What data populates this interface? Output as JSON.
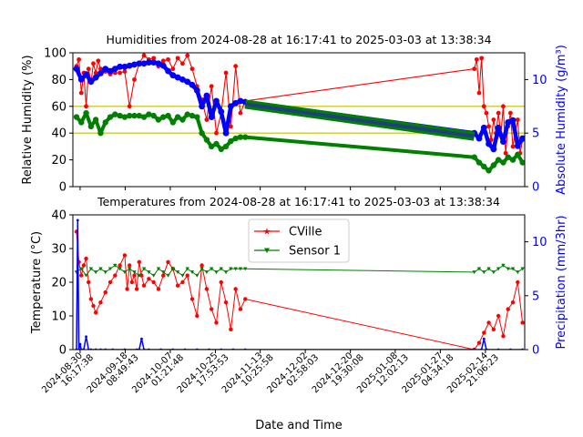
{
  "chart_data": [
    {
      "type": "line",
      "title": "Humidities from 2024-08-28 at 16:17:41 to 2025-03-03 at 13:38:34",
      "xlabel": "",
      "ylabel": "Relative Humidity (%)",
      "ylabel_right": "Absolute Humidity (g/m³)",
      "ylim": [
        0,
        100
      ],
      "ylim_right": [
        0,
        12.5
      ],
      "yticks": [
        0,
        20,
        40,
        60,
        80,
        100
      ],
      "yticks_right": [
        0,
        5,
        10
      ],
      "reference_lines": [
        40,
        60
      ],
      "x_range_days": [
        -1.5,
        185.9
      ],
      "series": [
        {
          "color": "#ff0000",
          "x": [
            0,
            1,
            2,
            3,
            4,
            5,
            6,
            7,
            8,
            9,
            10,
            12,
            14,
            16,
            18,
            20,
            22,
            24,
            26,
            28,
            30,
            32,
            34,
            36,
            38,
            40,
            42,
            44,
            46,
            48,
            50,
            52,
            54,
            56,
            58,
            60,
            62,
            64,
            66,
            68,
            70,
            165,
            166,
            167,
            168,
            169,
            170,
            171,
            172,
            173,
            174,
            175,
            176,
            177,
            178,
            179,
            180,
            181,
            182,
            183,
            184,
            185
          ],
          "y": [
            90,
            95,
            70,
            85,
            60,
            88,
            78,
            92,
            85,
            94,
            88,
            86,
            84,
            85,
            85,
            86,
            60,
            80,
            92,
            98,
            95,
            96,
            90,
            94,
            95,
            88,
            96,
            92,
            98,
            88,
            75,
            65,
            50,
            75,
            40,
            55,
            85,
            45,
            90,
            55,
            64,
            88,
            95,
            70,
            96,
            60,
            55,
            45,
            35,
            50,
            40,
            55,
            38,
            60,
            25,
            45,
            55,
            30,
            40,
            50,
            25,
            35
          ]
        },
        {
          "color": "#008000",
          "x": [
            0,
            2,
            4,
            6,
            8,
            10,
            12,
            14,
            16,
            18,
            20,
            22,
            24,
            26,
            28,
            30,
            32,
            34,
            36,
            38,
            40,
            42,
            44,
            46,
            48,
            50,
            52,
            54,
            56,
            58,
            60,
            62,
            64,
            66,
            68,
            70,
            165,
            167,
            169,
            171,
            173,
            175,
            177,
            179,
            181,
            183,
            185
          ],
          "y": [
            52,
            48,
            55,
            45,
            50,
            40,
            48,
            52,
            54,
            53,
            52,
            53,
            53,
            53,
            52,
            54,
            53,
            50,
            52,
            53,
            48,
            52,
            50,
            54,
            53,
            52,
            40,
            35,
            30,
            32,
            28,
            30,
            34,
            36,
            37,
            37,
            22,
            18,
            15,
            12,
            16,
            20,
            18,
            22,
            20,
            24,
            18
          ]
        }
      ],
      "series_right": [
        {
          "color": "#0000ff",
          "x": [
            0,
            2,
            4,
            6,
            8,
            10,
            12,
            14,
            16,
            18,
            20,
            22,
            24,
            26,
            28,
            30,
            32,
            34,
            36,
            38,
            40,
            42,
            44,
            46,
            48,
            50,
            52,
            54,
            56,
            58,
            60,
            62,
            64,
            66,
            68,
            70,
            165,
            167,
            169,
            171,
            173,
            175,
            177,
            179,
            181,
            183,
            185
          ],
          "y": [
            11,
            10,
            10.5,
            9.8,
            10.2,
            10.6,
            11,
            10.8,
            11,
            11.2,
            11.2,
            11.3,
            11.4,
            11.5,
            11.5,
            11.6,
            11.6,
            11.5,
            11.3,
            10.8,
            10.4,
            10.2,
            10,
            9.8,
            9.5,
            9,
            7.5,
            8.5,
            6.5,
            8,
            7,
            5,
            7.5,
            7.8,
            8,
            7.9,
            5,
            4.5,
            5.5,
            4,
            3.5,
            5.5,
            4.2,
            6,
            6.2,
            3.8,
            4.5
          ]
        },
        {
          "color": "#008000",
          "x": [
            70,
            165
          ],
          "y": [
            7.7,
            4.7
          ]
        }
      ]
    },
    {
      "type": "line",
      "title": "Temperatures from 2024-08-28 at 16:17:41 to 2025-03-03 at 13:38:34",
      "xlabel": "Date and Time",
      "ylabel": "Temperature (°C)",
      "ylabel_right": "Precipitation (mm/3hr)",
      "ylim": [
        0,
        40
      ],
      "ylim_right": [
        0,
        12.5
      ],
      "yticks": [
        0,
        10,
        20,
        30,
        40
      ],
      "yticks_right": [
        0,
        5,
        10
      ],
      "x_range_days": [
        -1.5,
        185.9
      ],
      "xtick_days": [
        1.5,
        20.2,
        38.9,
        57.6,
        76.2,
        94.9,
        113.6,
        132.2,
        150.9,
        169.6
      ],
      "xtick_labels": [
        [
          "2024-08-30",
          "16:17:38"
        ],
        [
          "2024-09-18",
          "08:49:43"
        ],
        [
          "2024-10-07",
          "01:21:48"
        ],
        [
          "2024-10-25",
          "17:53:53"
        ],
        [
          "2024-11-13",
          "10:25:58"
        ],
        [
          "2024-12-02",
          "02:58:03"
        ],
        [
          "2024-12-20",
          "19:30:08"
        ],
        [
          "2025-01-08",
          "12:02:13"
        ],
        [
          "2025-01-27",
          "04:34:18"
        ],
        [
          "2025-02-14",
          "21:06:23"
        ]
      ],
      "legend": {
        "position": "top-center",
        "entries": [
          "CVille",
          "Sensor 1"
        ]
      },
      "series": [
        {
          "name": "CVille",
          "color": "#ff0000",
          "marker": "star",
          "x": [
            0,
            1,
            2,
            3,
            4,
            5,
            6,
            7,
            8,
            10,
            12,
            14,
            16,
            18,
            20,
            21,
            22,
            23,
            24,
            25,
            26,
            27,
            28,
            30,
            32,
            34,
            36,
            38,
            40,
            42,
            44,
            46,
            48,
            50,
            52,
            54,
            56,
            58,
            60,
            62,
            64,
            66,
            68,
            70,
            165,
            167,
            169,
            171,
            173,
            175,
            177,
            179,
            181,
            183,
            185
          ],
          "y": [
            35,
            26,
            22,
            25,
            27,
            20,
            15,
            13,
            11,
            14,
            17,
            20,
            22,
            25,
            28,
            18,
            25,
            20,
            22,
            18,
            26,
            22,
            19,
            21,
            20,
            18,
            22,
            26,
            24,
            19,
            20,
            22,
            15,
            10,
            25,
            18,
            12,
            8,
            20,
            14,
            6,
            18,
            12,
            15,
            0,
            2,
            5,
            8,
            6,
            10,
            4,
            12,
            14,
            20,
            8
          ]
        },
        {
          "name": "Sensor 1",
          "color": "#008000",
          "marker": "triangle",
          "x": [
            0,
            2,
            4,
            6,
            8,
            10,
            12,
            14,
            16,
            18,
            20,
            22,
            24,
            26,
            28,
            30,
            32,
            34,
            36,
            38,
            40,
            42,
            44,
            46,
            48,
            50,
            52,
            54,
            56,
            58,
            60,
            62,
            64,
            66,
            68,
            70,
            165,
            167,
            169,
            171,
            173,
            175,
            177,
            179,
            181,
            183,
            185
          ],
          "y": [
            23,
            24,
            22,
            24,
            23,
            24,
            23,
            24,
            25,
            24,
            23,
            24,
            23,
            22,
            24,
            23,
            22,
            24,
            23,
            22,
            24,
            23,
            22,
            24,
            23,
            22,
            24,
            23,
            24,
            23,
            24,
            23,
            24,
            24,
            24,
            24,
            23,
            24,
            23,
            24,
            23,
            24,
            25,
            24,
            24,
            23,
            24
          ]
        }
      ],
      "series_right": [
        {
          "color": "#0000ff",
          "x": [
            0,
            0.5,
            1,
            1.5,
            2,
            3,
            4,
            5,
            6,
            8,
            10,
            12,
            15,
            20,
            25,
            26,
            27,
            28,
            30,
            35,
            40,
            45,
            50,
            55,
            60,
            65,
            70,
            165,
            168,
            169,
            170,
            175,
            180,
            185
          ],
          "y": [
            0,
            12,
            0,
            0.5,
            0,
            0,
            1.2,
            0,
            0,
            0,
            0,
            0,
            0,
            0,
            0,
            0,
            1,
            0,
            0,
            0,
            0,
            0,
            0,
            0,
            0,
            0,
            0,
            0,
            0,
            1,
            0,
            0,
            0,
            0
          ]
        }
      ]
    }
  ]
}
